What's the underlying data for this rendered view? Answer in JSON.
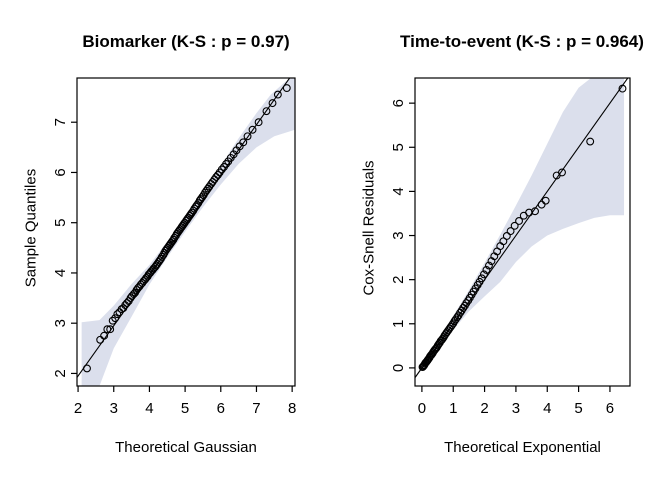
{
  "figure": {
    "background": "#ffffff",
    "point_color": "#000000",
    "line_color": "#000000"
  },
  "chart_data": [
    {
      "type": "scatter",
      "title": "Biomarker (K-S : p = 0.97)",
      "xlabel": "Theoretical Gaussian",
      "ylabel": "Sample Quantiles",
      "xlim": [
        1.97,
        8.08
      ],
      "ylim": [
        1.75,
        7.88
      ],
      "xticks": [
        2,
        3,
        4,
        5,
        6,
        7,
        8
      ],
      "yticks": [
        2,
        3,
        4,
        5,
        6,
        7
      ],
      "grid": false,
      "legend": null,
      "line": [
        [
          1.9,
          1.85
        ],
        [
          8.2,
          8.15
        ]
      ],
      "band": {
        "color": "#dbdfec",
        "upper": [
          [
            2.1,
            3.02
          ],
          [
            2.6,
            3.06
          ],
          [
            3.0,
            3.35
          ],
          [
            3.5,
            3.78
          ],
          [
            4.0,
            4.16
          ],
          [
            4.5,
            4.62
          ],
          [
            5.0,
            5.1
          ],
          [
            5.5,
            5.6
          ],
          [
            6.0,
            6.13
          ],
          [
            6.5,
            6.68
          ],
          [
            7.0,
            7.18
          ],
          [
            7.4,
            7.55
          ],
          [
            7.8,
            7.8
          ],
          [
            8.08,
            7.95
          ]
        ],
        "lower": [
          [
            2.1,
            0.9
          ],
          [
            2.6,
            1.75
          ],
          [
            3.0,
            2.5
          ],
          [
            3.5,
            3.13
          ],
          [
            4.0,
            3.77
          ],
          [
            4.5,
            4.31
          ],
          [
            5.0,
            4.82
          ],
          [
            5.5,
            5.31
          ],
          [
            6.0,
            5.76
          ],
          [
            6.5,
            6.17
          ],
          [
            7.0,
            6.5
          ],
          [
            7.5,
            6.72
          ],
          [
            8.08,
            6.85
          ]
        ]
      },
      "points": [
        [
          2.25,
          2.1
        ],
        [
          2.62,
          2.67
        ],
        [
          2.73,
          2.75
        ],
        [
          2.82,
          2.88
        ],
        [
          2.9,
          2.88
        ],
        [
          2.97,
          3.05
        ],
        [
          3.04,
          3.1
        ],
        [
          3.1,
          3.18
        ],
        [
          3.16,
          3.22
        ],
        [
          3.22,
          3.28
        ],
        [
          3.27,
          3.3
        ],
        [
          3.32,
          3.36
        ],
        [
          3.37,
          3.4
        ],
        [
          3.42,
          3.44
        ],
        [
          3.47,
          3.5
        ],
        [
          3.51,
          3.54
        ],
        [
          3.56,
          3.58
        ],
        [
          3.6,
          3.61
        ],
        [
          3.64,
          3.66
        ],
        [
          3.68,
          3.7
        ],
        [
          3.72,
          3.73
        ],
        [
          3.76,
          3.77
        ],
        [
          3.8,
          3.8
        ],
        [
          3.84,
          3.84
        ],
        [
          3.88,
          3.87
        ],
        [
          3.91,
          3.9
        ],
        [
          3.95,
          3.93
        ],
        [
          3.98,
          3.97
        ],
        [
          4.02,
          4.0
        ],
        [
          4.05,
          4.03
        ],
        [
          4.09,
          4.06
        ],
        [
          4.12,
          4.09
        ],
        [
          4.16,
          4.12
        ],
        [
          4.19,
          4.15
        ],
        [
          4.22,
          4.18
        ],
        [
          4.26,
          4.22
        ],
        [
          4.29,
          4.25
        ],
        [
          4.32,
          4.28
        ],
        [
          4.35,
          4.32
        ],
        [
          4.39,
          4.36
        ],
        [
          4.42,
          4.4
        ],
        [
          4.45,
          4.44
        ],
        [
          4.48,
          4.47
        ],
        [
          4.51,
          4.5
        ],
        [
          4.55,
          4.54
        ],
        [
          4.58,
          4.57
        ],
        [
          4.61,
          4.6
        ],
        [
          4.64,
          4.63
        ],
        [
          4.67,
          4.66
        ],
        [
          4.7,
          4.7
        ],
        [
          4.74,
          4.74
        ],
        [
          4.77,
          4.78
        ],
        [
          4.8,
          4.81
        ],
        [
          4.83,
          4.84
        ],
        [
          4.86,
          4.87
        ],
        [
          4.9,
          4.91
        ],
        [
          4.93,
          4.94
        ],
        [
          4.96,
          4.97
        ],
        [
          4.99,
          5.0
        ],
        [
          5.03,
          5.04
        ],
        [
          5.06,
          5.07
        ],
        [
          5.09,
          5.1
        ],
        [
          5.13,
          5.14
        ],
        [
          5.16,
          5.17
        ],
        [
          5.19,
          5.2
        ],
        [
          5.23,
          5.24
        ],
        [
          5.26,
          5.28
        ],
        [
          5.3,
          5.32
        ],
        [
          5.33,
          5.35
        ],
        [
          5.37,
          5.39
        ],
        [
          5.41,
          5.44
        ],
        [
          5.44,
          5.47
        ],
        [
          5.48,
          5.51
        ],
        [
          5.52,
          5.55
        ],
        [
          5.56,
          5.6
        ],
        [
          5.6,
          5.64
        ],
        [
          5.64,
          5.68
        ],
        [
          5.68,
          5.72
        ],
        [
          5.73,
          5.77
        ],
        [
          5.77,
          5.81
        ],
        [
          5.82,
          5.86
        ],
        [
          5.87,
          5.91
        ],
        [
          5.92,
          5.95
        ],
        [
          5.97,
          6.0
        ],
        [
          6.03,
          6.06
        ],
        [
          6.09,
          6.11
        ],
        [
          6.15,
          6.17
        ],
        [
          6.21,
          6.22
        ],
        [
          6.28,
          6.29
        ],
        [
          6.36,
          6.36
        ],
        [
          6.44,
          6.44
        ],
        [
          6.53,
          6.52
        ],
        [
          6.63,
          6.6
        ],
        [
          6.75,
          6.72
        ],
        [
          6.89,
          6.85
        ],
        [
          7.06,
          7.0
        ],
        [
          7.28,
          7.22
        ],
        [
          7.45,
          7.38
        ],
        [
          7.6,
          7.55
        ],
        [
          7.85,
          7.68
        ]
      ]
    },
    {
      "type": "scatter",
      "title": "Time-to-event (K-S : p = 0.964)",
      "xlabel": "Theoretical Exponential",
      "ylabel": "Cox-Snell Residuals",
      "xlim": [
        -0.22,
        6.64
      ],
      "ylim": [
        -0.41,
        6.57
      ],
      "xticks": [
        0,
        1,
        2,
        3,
        4,
        5,
        6
      ],
      "yticks": [
        0,
        1,
        2,
        3,
        4,
        5,
        6
      ],
      "grid": false,
      "legend": null,
      "line": [
        [
          -0.3,
          -0.3
        ],
        [
          6.7,
          6.7
        ]
      ],
      "band": {
        "color": "#dbdfec",
        "upper": [
          [
            0.01,
            0.06
          ],
          [
            0.5,
            0.62
          ],
          [
            1.0,
            1.18
          ],
          [
            1.5,
            1.76
          ],
          [
            2.0,
            2.38
          ],
          [
            2.5,
            3.02
          ],
          [
            3.0,
            3.68
          ],
          [
            3.5,
            4.36
          ],
          [
            4.0,
            5.08
          ],
          [
            4.5,
            5.8
          ],
          [
            5.0,
            6.35
          ],
          [
            5.45,
            6.6
          ],
          [
            6.45,
            8.0
          ]
        ],
        "lower": [
          [
            0.01,
            -0.02
          ],
          [
            0.5,
            0.42
          ],
          [
            1.0,
            0.86
          ],
          [
            1.5,
            1.28
          ],
          [
            2.0,
            1.62
          ],
          [
            2.5,
            1.95
          ],
          [
            3.0,
            2.4
          ],
          [
            3.5,
            2.75
          ],
          [
            4.0,
            3.0
          ],
          [
            4.5,
            3.15
          ],
          [
            5.0,
            3.28
          ],
          [
            5.5,
            3.4
          ],
          [
            6.0,
            3.46
          ],
          [
            6.45,
            3.46
          ]
        ]
      },
      "points": [
        [
          0.02,
          0.02
        ],
        [
          0.04,
          0.03
        ],
        [
          0.06,
          0.05
        ],
        [
          0.08,
          0.07
        ],
        [
          0.1,
          0.1
        ],
        [
          0.12,
          0.12
        ],
        [
          0.14,
          0.13
        ],
        [
          0.17,
          0.16
        ],
        [
          0.19,
          0.18
        ],
        [
          0.21,
          0.2
        ],
        [
          0.24,
          0.23
        ],
        [
          0.26,
          0.26
        ],
        [
          0.29,
          0.29
        ],
        [
          0.31,
          0.3
        ],
        [
          0.34,
          0.33
        ],
        [
          0.36,
          0.36
        ],
        [
          0.39,
          0.39
        ],
        [
          0.42,
          0.42
        ],
        [
          0.45,
          0.44
        ],
        [
          0.48,
          0.47
        ],
        [
          0.51,
          0.51
        ],
        [
          0.54,
          0.54
        ],
        [
          0.57,
          0.57
        ],
        [
          0.6,
          0.61
        ],
        [
          0.63,
          0.63
        ],
        [
          0.66,
          0.66
        ],
        [
          0.7,
          0.7
        ],
        [
          0.73,
          0.74
        ],
        [
          0.77,
          0.78
        ],
        [
          0.8,
          0.81
        ],
        [
          0.84,
          0.85
        ],
        [
          0.88,
          0.89
        ],
        [
          0.92,
          0.93
        ],
        [
          0.96,
          0.97
        ],
        [
          1.0,
          1.01
        ],
        [
          1.04,
          1.06
        ],
        [
          1.08,
          1.1
        ],
        [
          1.13,
          1.15
        ],
        [
          1.17,
          1.19
        ],
        [
          1.22,
          1.25
        ],
        [
          1.27,
          1.3
        ],
        [
          1.32,
          1.36
        ],
        [
          1.37,
          1.41
        ],
        [
          1.42,
          1.47
        ],
        [
          1.48,
          1.53
        ],
        [
          1.53,
          1.59
        ],
        [
          1.59,
          1.66
        ],
        [
          1.65,
          1.73
        ],
        [
          1.71,
          1.8
        ],
        [
          1.78,
          1.88
        ],
        [
          1.84,
          1.95
        ],
        [
          1.91,
          2.03
        ],
        [
          1.98,
          2.12
        ],
        [
          2.06,
          2.22
        ],
        [
          2.14,
          2.32
        ],
        [
          2.22,
          2.42
        ],
        [
          2.31,
          2.53
        ],
        [
          2.4,
          2.64
        ],
        [
          2.5,
          2.76
        ],
        [
          2.6,
          2.87
        ],
        [
          2.71,
          2.99
        ],
        [
          2.83,
          3.1
        ],
        [
          2.96,
          3.22
        ],
        [
          3.1,
          3.33
        ],
        [
          3.25,
          3.45
        ],
        [
          3.42,
          3.52
        ],
        [
          3.61,
          3.55
        ],
        [
          3.82,
          3.7
        ],
        [
          3.95,
          3.79
        ],
        [
          4.3,
          4.36
        ],
        [
          4.47,
          4.43
        ],
        [
          5.37,
          5.13
        ],
        [
          6.4,
          6.33
        ]
      ]
    }
  ]
}
